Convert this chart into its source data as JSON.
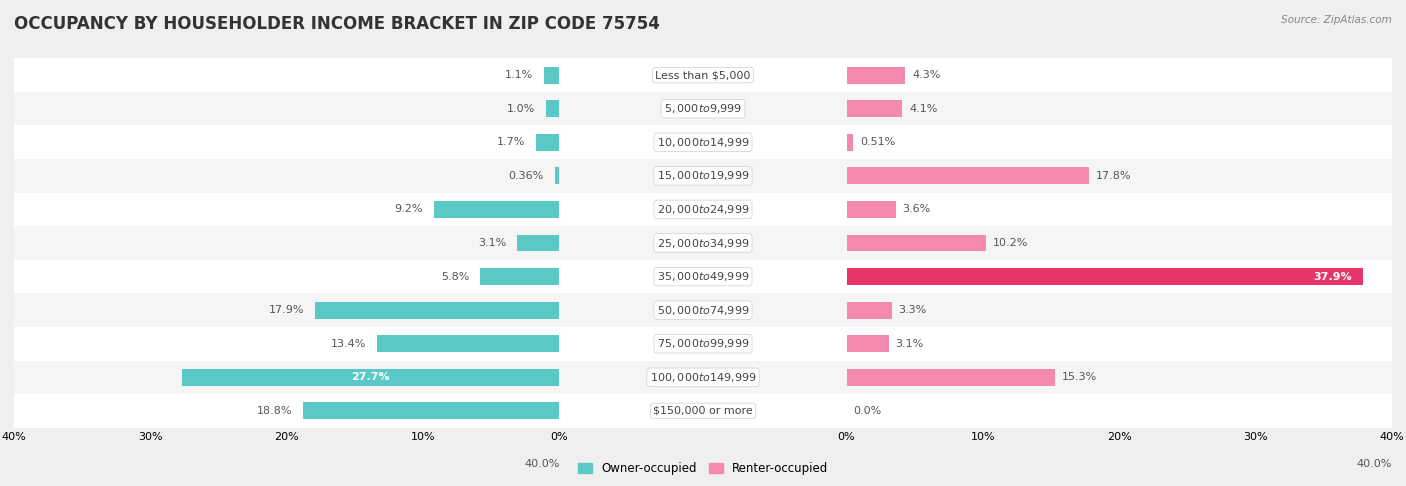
{
  "title": "OCCUPANCY BY HOUSEHOLDER INCOME BRACKET IN ZIP CODE 75754",
  "source": "Source: ZipAtlas.com",
  "categories": [
    "Less than $5,000",
    "$5,000 to $9,999",
    "$10,000 to $14,999",
    "$15,000 to $19,999",
    "$20,000 to $24,999",
    "$25,000 to $34,999",
    "$35,000 to $49,999",
    "$50,000 to $74,999",
    "$75,000 to $99,999",
    "$100,000 to $149,999",
    "$150,000 or more"
  ],
  "owner_values": [
    1.1,
    1.0,
    1.7,
    0.36,
    9.2,
    3.1,
    5.8,
    17.9,
    13.4,
    27.7,
    18.8
  ],
  "renter_values": [
    4.3,
    4.1,
    0.51,
    17.8,
    3.6,
    10.2,
    37.9,
    3.3,
    3.1,
    15.3,
    0.0
  ],
  "owner_color": "#5bc8c8",
  "renter_color": "#f48aab",
  "renter_color_bright": "#e8366a",
  "background_color": "#efefef",
  "row_bg_color": "#ffffff",
  "row_alt_color": "#f5f5f5",
  "axis_max": 40.0,
  "bar_height": 0.5,
  "title_fontsize": 12,
  "label_fontsize": 8,
  "category_fontsize": 8,
  "legend_fontsize": 8.5,
  "source_fontsize": 7.5,
  "tick_fontsize": 8
}
